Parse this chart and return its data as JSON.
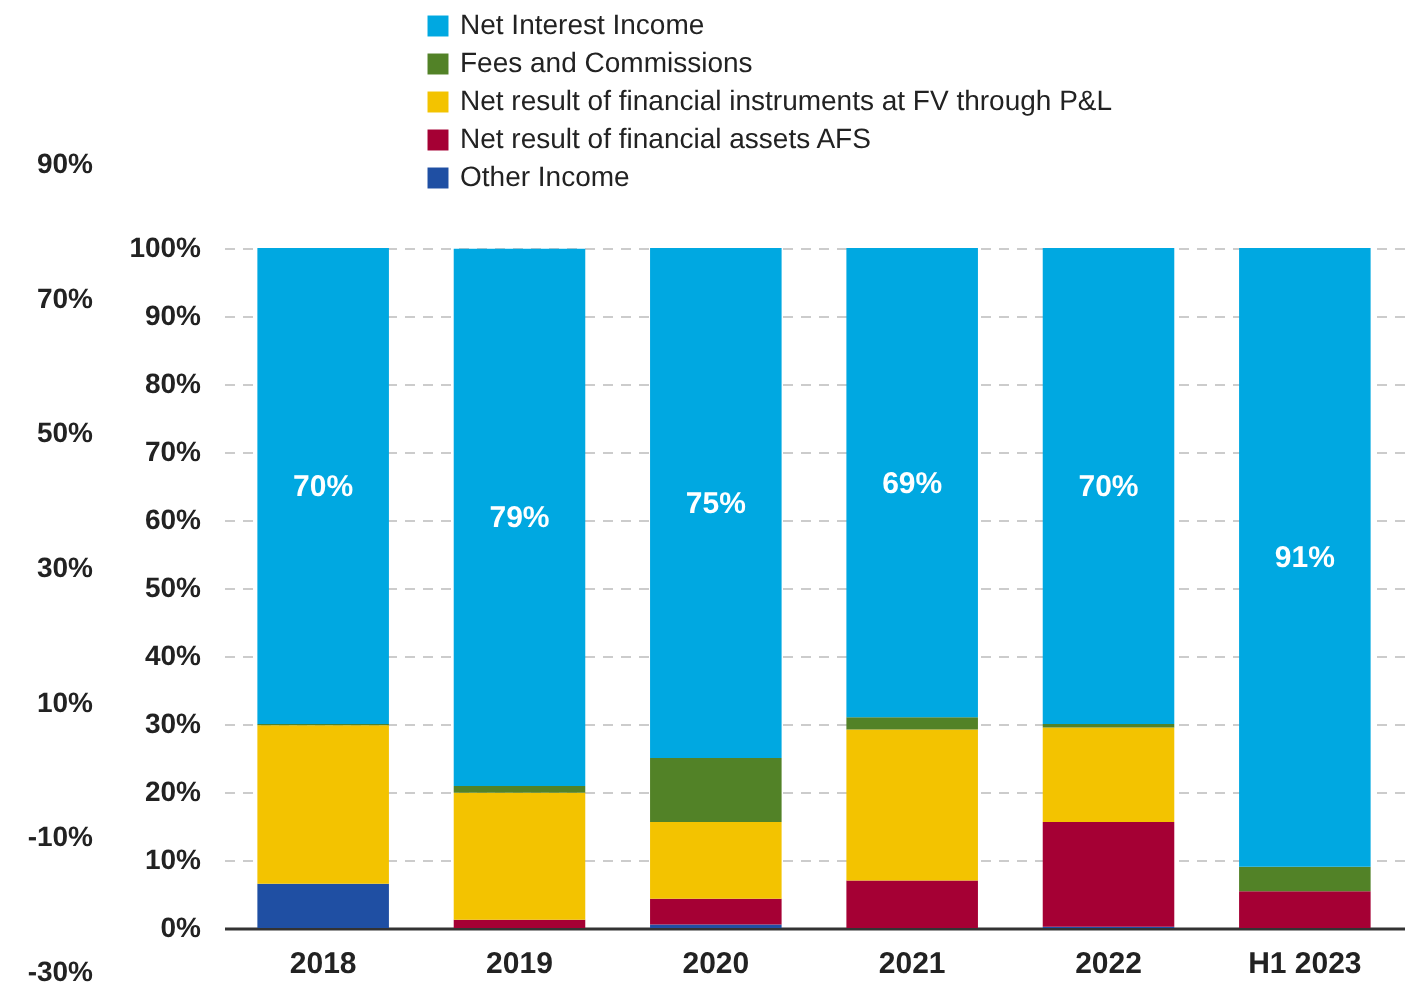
{
  "chart_data": {
    "type": "bar",
    "stacked": true,
    "categories": [
      "2018",
      "2019",
      "2020",
      "2021",
      "2022",
      "H1 2023"
    ],
    "series": [
      {
        "name": "Other Income",
        "color": "#1f4fa3",
        "values": [
          6.5,
          0,
          0.5,
          0,
          0.2,
          0
        ]
      },
      {
        "name": "Net result of financial assets AFS",
        "color": "#a50034",
        "values": [
          0,
          1.2,
          3.8,
          7,
          15.4,
          5.4
        ]
      },
      {
        "name": "Net result of financial instruments at FV through P&L",
        "color": "#f3c300",
        "values": [
          23.3,
          18.7,
          11.3,
          22.2,
          13.9,
          0
        ]
      },
      {
        "name": "Fees and Commissions",
        "color": "#528227",
        "values": [
          0.2,
          1,
          9.4,
          1.8,
          0.5,
          3.6
        ]
      },
      {
        "name": "Net Interest Income",
        "color": "#00a8e1",
        "values": [
          70,
          79,
          75,
          69,
          70,
          91
        ],
        "value_labels": [
          "70%",
          "79%",
          "75%",
          "69%",
          "70%",
          "91%"
        ]
      }
    ],
    "ylim": [
      0,
      100
    ],
    "yticks": [
      {
        "value": 0,
        "label": "0%"
      },
      {
        "value": 10,
        "label": "10%"
      },
      {
        "value": 20,
        "label": "20%"
      },
      {
        "value": 30,
        "label": "30%"
      },
      {
        "value": 40,
        "label": "40%"
      },
      {
        "value": 50,
        "label": "50%"
      },
      {
        "value": 60,
        "label": "60%"
      },
      {
        "value": 70,
        "label": "70%"
      },
      {
        "value": 80,
        "label": "80%"
      },
      {
        "value": 90,
        "label": "90%"
      },
      {
        "value": 100,
        "label": "100%"
      }
    ],
    "y2lim": [
      -30,
      90
    ],
    "y2ticks": [
      {
        "value": -30,
        "label": "-30%"
      },
      {
        "value": -10,
        "label": "-10%"
      },
      {
        "value": 10,
        "label": "10%"
      },
      {
        "value": 30,
        "label": "30%"
      },
      {
        "value": 50,
        "label": "50%"
      },
      {
        "value": 70,
        "label": "70%"
      },
      {
        "value": 90,
        "label": "90%"
      }
    ],
    "grid": "y",
    "legend": "top"
  }
}
